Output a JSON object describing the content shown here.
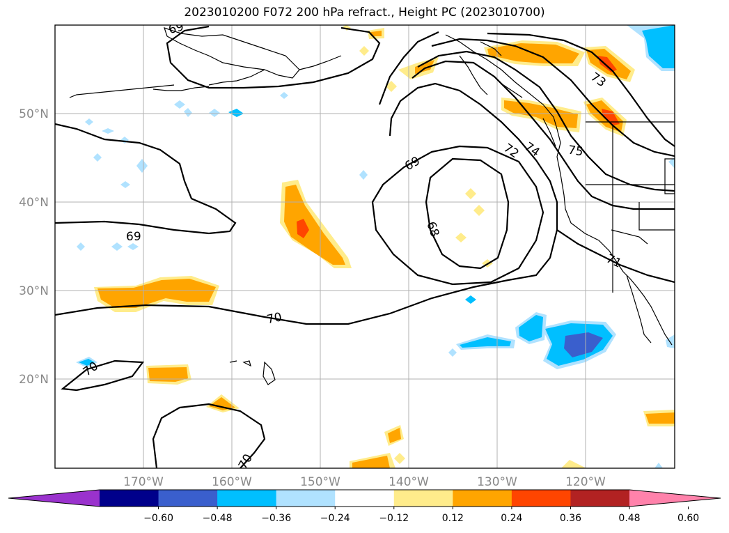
{
  "title": "2023010200 F072 200 hPa refract., Height PC (2023010700)",
  "lat_labels": [
    "50°N",
    "40°N",
    "30°N",
    "20°N"
  ],
  "lon_labels": [
    "170°W",
    "160°W",
    "150°W",
    "140°W",
    "130°W",
    "120°W"
  ],
  "contour_labels": [
    "69",
    "68",
    "69",
    "70",
    "70",
    "70",
    "72",
    "74",
    "75",
    "73",
    "71",
    "69"
  ],
  "colorbar": {
    "ticks": [
      "−0.60",
      "−0.48",
      "−0.36",
      "−0.24",
      "−0.12",
      "0.12",
      "0.24",
      "0.36",
      "0.48",
      "0.60"
    ],
    "colors": [
      "#9a32cd",
      "#00008b",
      "#3a5fcd",
      "#00bfff",
      "#b0e2ff",
      "#ffffff",
      "#ffec8b",
      "#ffa500",
      "#ff4500",
      "#b22222",
      "#ff82ab"
    ]
  },
  "colors": {
    "neg_strong": "#3a5fcd",
    "neg_mid": "#00bfff",
    "neg_weak": "#b0e2ff",
    "pos_weak": "#ffec8b",
    "pos_mid": "#ffa500",
    "pos_strong": "#ff4500",
    "grid": "#b0b0b0",
    "contour": "#000000"
  }
}
